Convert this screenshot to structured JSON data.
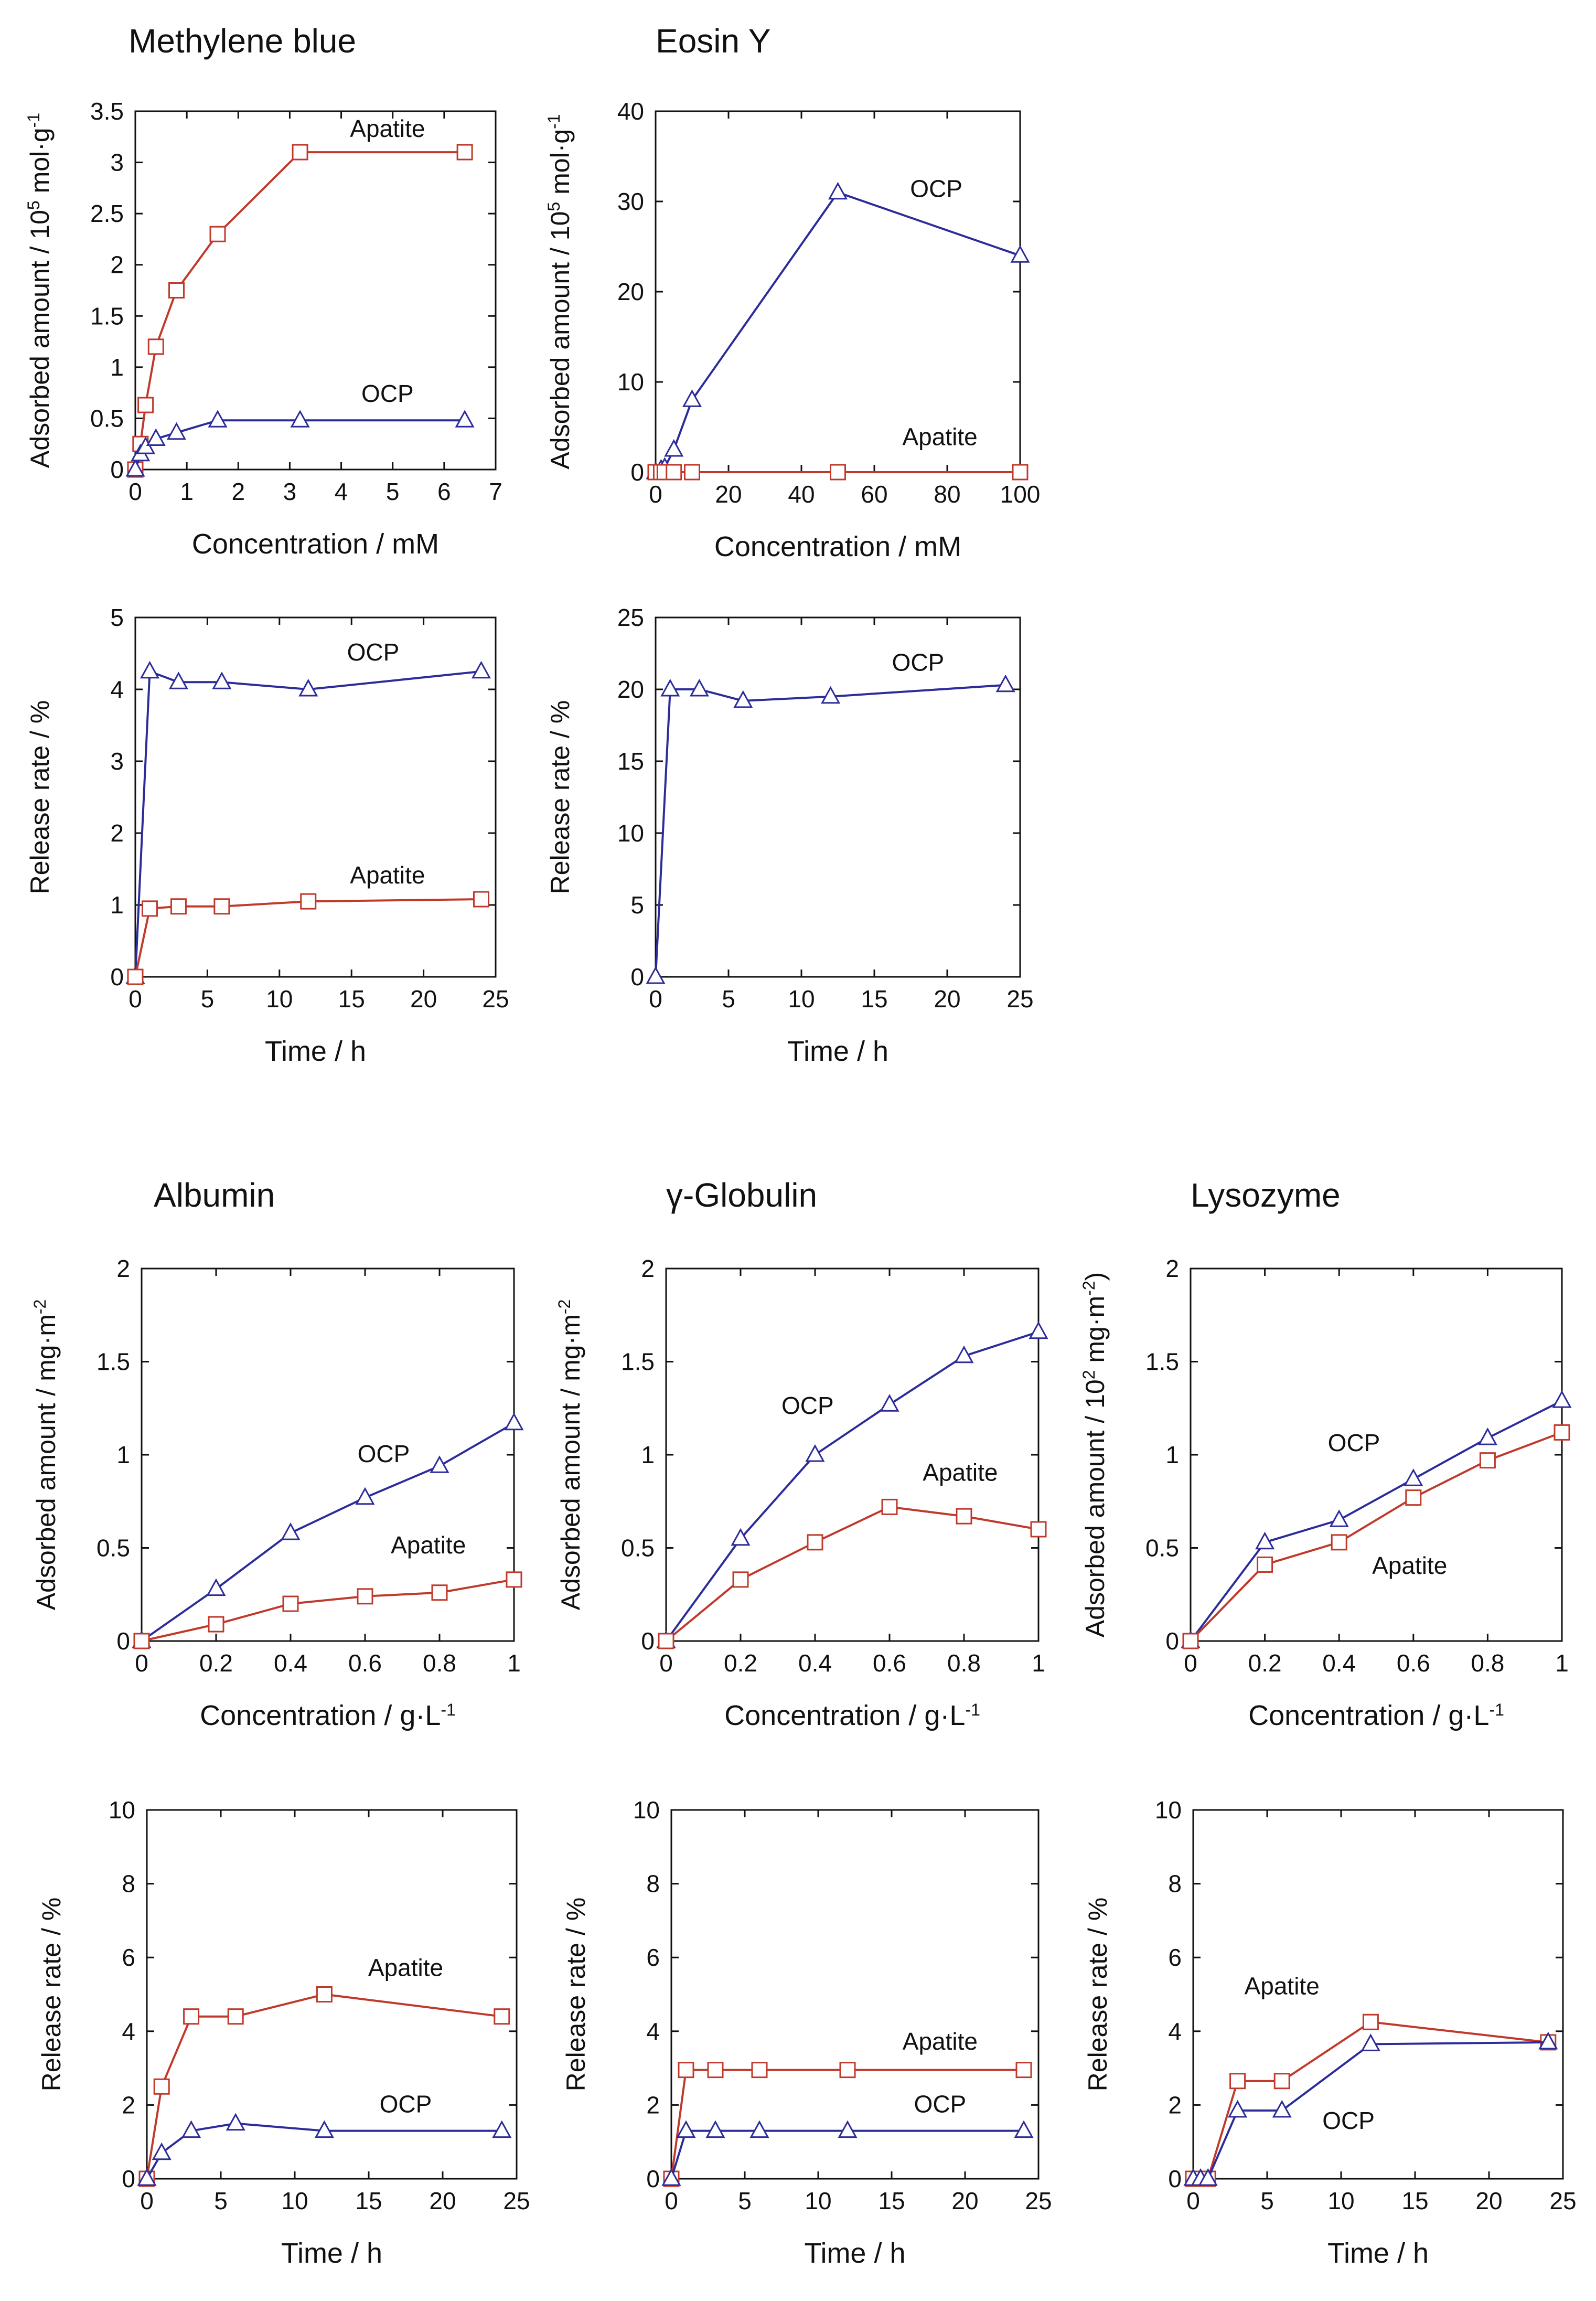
{
  "colors": {
    "apatite": "#c0392b",
    "ocp": "#2c2c9a",
    "axis": "#111111"
  },
  "chart_data": [
    {
      "id": "mb-ads",
      "type": "line",
      "title": "Methylene blue",
      "xlabel": "Concentration / mM",
      "ylabel": "Adsorbed amount / 10",
      "ylabel_sup": "5",
      "ylabel_tail": " mol·g",
      "ylabel_tail_sup": "-1",
      "xlim": [
        0,
        7
      ],
      "ylim": [
        0,
        3.5
      ],
      "xticks": [
        0,
        1,
        2,
        3,
        4,
        5,
        6,
        7
      ],
      "xtick_labels": [
        "0",
        "1",
        "2",
        "3",
        "4",
        "5",
        "6",
        "7"
      ],
      "yticks": [
        0,
        0.5,
        1,
        1.5,
        2,
        2.5,
        3,
        3.5
      ],
      "ytick_labels": [
        "0",
        "0.5",
        "1",
        "1.5",
        "2",
        "2.5",
        "3",
        "3.5"
      ],
      "series": [
        {
          "name": "Apatite",
          "marker": "square",
          "x": [
            0,
            0.1,
            0.2,
            0.4,
            0.8,
            1.6,
            3.2,
            6.4
          ],
          "y": [
            0,
            0.25,
            0.63,
            1.2,
            1.75,
            2.3,
            3.1,
            3.1
          ],
          "label": {
            "x": 4.9,
            "y": 3.25
          }
        },
        {
          "name": "OCP",
          "marker": "triangle",
          "x": [
            0,
            0.1,
            0.2,
            0.4,
            0.8,
            1.6,
            3.2,
            6.4
          ],
          "y": [
            0,
            0.15,
            0.22,
            0.3,
            0.36,
            0.48,
            0.48,
            0.48
          ],
          "label": {
            "x": 4.9,
            "y": 0.66
          }
        }
      ]
    },
    {
      "id": "eo-ads",
      "type": "line",
      "title": "Eosin Y",
      "xlabel": "Concentration / mM",
      "ylabel": "Adsorbed amount / 10",
      "ylabel_sup": "5",
      "ylabel_tail": " mol·g",
      "ylabel_tail_sup": "-1",
      "xlim": [
        0,
        100
      ],
      "ylim": [
        0,
        40
      ],
      "xticks": [
        0,
        20,
        40,
        60,
        80,
        100
      ],
      "xtick_labels": [
        "0",
        "20",
        "40",
        "60",
        "80",
        "100"
      ],
      "yticks": [
        0,
        10,
        20,
        30,
        40
      ],
      "ytick_labels": [
        "0",
        "10",
        "20",
        "30",
        "40"
      ],
      "series": [
        {
          "name": "OCP",
          "marker": "triangle",
          "x": [
            0,
            1.5,
            2.5,
            5,
            10,
            50,
            100
          ],
          "y": [
            0,
            0.3,
            0.5,
            2.5,
            8,
            31,
            24
          ],
          "label": {
            "x": 77,
            "y": 30.5
          }
        },
        {
          "name": "Apatite",
          "marker": "square",
          "x": [
            0,
            1.5,
            2.5,
            5,
            10,
            50,
            100
          ],
          "y": [
            0,
            0,
            0,
            0,
            0,
            0,
            0
          ],
          "label": {
            "x": 78,
            "y": 3
          }
        }
      ]
    },
    {
      "id": "mb-rel",
      "type": "line",
      "title": "",
      "xlabel": "Time / h",
      "ylabel": "Release rate / %",
      "xlim": [
        0,
        25
      ],
      "ylim": [
        0,
        5
      ],
      "xticks": [
        0,
        5,
        10,
        15,
        20,
        25
      ],
      "xtick_labels": [
        "0",
        "5",
        "10",
        "15",
        "20",
        "25"
      ],
      "yticks": [
        0,
        1,
        2,
        3,
        4,
        5
      ],
      "ytick_labels": [
        "0",
        "1",
        "2",
        "3",
        "4",
        "5"
      ],
      "series": [
        {
          "name": "OCP",
          "marker": "triangle",
          "x": [
            0,
            1,
            3,
            6,
            12,
            24
          ],
          "y": [
            0,
            4.25,
            4.1,
            4.1,
            4,
            4.25
          ],
          "label": {
            "x": 16.5,
            "y": 4.4
          }
        },
        {
          "name": "Apatite",
          "marker": "square",
          "x": [
            0,
            1,
            3,
            6,
            12,
            24
          ],
          "y": [
            0,
            0.95,
            0.98,
            0.98,
            1.05,
            1.08
          ],
          "label": {
            "x": 17.5,
            "y": 1.3
          }
        }
      ]
    },
    {
      "id": "eo-rel",
      "type": "line",
      "title": "",
      "xlabel": "Time / h",
      "ylabel": "Release rate / %",
      "xlim": [
        0,
        25
      ],
      "ylim": [
        0,
        25
      ],
      "xticks": [
        0,
        5,
        10,
        15,
        20,
        25
      ],
      "xtick_labels": [
        "0",
        "5",
        "10",
        "15",
        "20",
        "25"
      ],
      "yticks": [
        0,
        5,
        10,
        15,
        20,
        25
      ],
      "ytick_labels": [
        "0",
        "5",
        "10",
        "15",
        "20",
        "25"
      ],
      "series": [
        {
          "name": "OCP",
          "marker": "triangle",
          "x": [
            0,
            1,
            3,
            6,
            12,
            24
          ],
          "y": [
            0,
            20,
            20,
            19.2,
            19.5,
            20.3
          ],
          "label": {
            "x": 18,
            "y": 21.3
          }
        }
      ]
    },
    {
      "id": "alb-ads",
      "type": "line",
      "title": "Albumin",
      "xlabel": "Concentration / g·L",
      "xlabel_sup": "-1",
      "ylabel": "Adsorbed amount / mg·m",
      "ylabel_sup": "-2",
      "xlim": [
        0,
        1
      ],
      "ylim": [
        0,
        2
      ],
      "xticks": [
        0,
        0.2,
        0.4,
        0.6,
        0.8,
        1
      ],
      "xtick_labels": [
        "0",
        "0.2",
        "0.4",
        "0.6",
        "0.8",
        "1"
      ],
      "yticks": [
        0,
        0.5,
        1,
        1.5,
        2
      ],
      "ytick_labels": [
        "0",
        "0.5",
        "1",
        "1.5",
        "2"
      ],
      "series": [
        {
          "name": "OCP",
          "marker": "triangle",
          "x": [
            0,
            0.2,
            0.4,
            0.6,
            0.8,
            1
          ],
          "y": [
            0,
            0.28,
            0.58,
            0.77,
            0.94,
            1.17
          ],
          "label": {
            "x": 0.65,
            "y": 0.96
          }
        },
        {
          "name": "Apatite",
          "marker": "square",
          "x": [
            0,
            0.2,
            0.4,
            0.6,
            0.8,
            1
          ],
          "y": [
            0,
            0.09,
            0.2,
            0.24,
            0.26,
            0.33
          ],
          "label": {
            "x": 0.77,
            "y": 0.47
          }
        }
      ]
    },
    {
      "id": "glob-ads",
      "type": "line",
      "title": "γ-Globulin",
      "xlabel": "Concentration / g·L",
      "xlabel_sup": "-1",
      "ylabel": "Adsorbed amount / mg·m",
      "ylabel_sup": "-2",
      "xlim": [
        0,
        1
      ],
      "ylim": [
        0,
        2
      ],
      "xticks": [
        0,
        0.2,
        0.4,
        0.6,
        0.8,
        1
      ],
      "xtick_labels": [
        "0",
        "0.2",
        "0.4",
        "0.6",
        "0.8",
        "1"
      ],
      "yticks": [
        0,
        0.5,
        1,
        1.5,
        2
      ],
      "ytick_labels": [
        "0",
        "0.5",
        "1",
        "1.5",
        "2"
      ],
      "series": [
        {
          "name": "OCP",
          "marker": "triangle",
          "x": [
            0,
            0.2,
            0.4,
            0.6,
            0.8,
            1
          ],
          "y": [
            0,
            0.55,
            1,
            1.27,
            1.53,
            1.66
          ],
          "label": {
            "x": 0.38,
            "y": 1.22
          }
        },
        {
          "name": "Apatite",
          "marker": "square",
          "x": [
            0,
            0.2,
            0.4,
            0.6,
            0.8,
            1
          ],
          "y": [
            0,
            0.33,
            0.53,
            0.72,
            0.67,
            0.6
          ],
          "label": {
            "x": 0.79,
            "y": 0.86
          }
        }
      ]
    },
    {
      "id": "lys-ads",
      "type": "line",
      "title": "Lysozyme",
      "xlabel": "Concentration / g·L",
      "xlabel_sup": "-1",
      "ylabel": "Adsorbed amount / 10",
      "ylabel_sup": "2",
      "ylabel_tail": " mg·m",
      "ylabel_tail_sup": "-2",
      "ylabel_end": ")",
      "xlim": [
        0,
        1
      ],
      "ylim": [
        0,
        2
      ],
      "xticks": [
        0,
        0.2,
        0.4,
        0.6,
        0.8,
        1
      ],
      "xtick_labels": [
        "0",
        "0.2",
        "0.4",
        "0.6",
        "0.8",
        "1"
      ],
      "yticks": [
        0,
        0.5,
        1,
        1.5,
        2
      ],
      "ytick_labels": [
        "0",
        "0.5",
        "1",
        "1.5",
        "2"
      ],
      "series": [
        {
          "name": "OCP",
          "marker": "triangle",
          "x": [
            0,
            0.2,
            0.4,
            0.6,
            0.8,
            1
          ],
          "y": [
            0,
            0.53,
            0.65,
            0.87,
            1.09,
            1.29
          ],
          "label": {
            "x": 0.44,
            "y": 1.02
          }
        },
        {
          "name": "Apatite",
          "marker": "square",
          "x": [
            0,
            0.2,
            0.4,
            0.6,
            0.8,
            1
          ],
          "y": [
            0,
            0.41,
            0.53,
            0.77,
            0.97,
            1.12
          ],
          "label": {
            "x": 0.59,
            "y": 0.36
          }
        }
      ]
    },
    {
      "id": "alb-rel",
      "type": "line",
      "title": "",
      "xlabel": "Time / h",
      "ylabel": "Release rate / %",
      "xlim": [
        0,
        25
      ],
      "ylim": [
        0,
        10
      ],
      "xticks": [
        0,
        5,
        10,
        15,
        20,
        25
      ],
      "xtick_labels": [
        "0",
        "5",
        "10",
        "15",
        "20",
        "25"
      ],
      "yticks": [
        0,
        2,
        4,
        6,
        8,
        10
      ],
      "ytick_labels": [
        "0",
        "2",
        "4",
        "6",
        "8",
        "10"
      ],
      "series": [
        {
          "name": "Apatite",
          "marker": "square",
          "x": [
            0,
            1,
            3,
            6,
            12,
            24
          ],
          "y": [
            0,
            2.5,
            4.4,
            4.4,
            5,
            4.4
          ],
          "label": {
            "x": 17.5,
            "y": 5.5
          }
        },
        {
          "name": "OCP",
          "marker": "triangle",
          "x": [
            0,
            1,
            3,
            6,
            12,
            24
          ],
          "y": [
            0,
            0.7,
            1.3,
            1.5,
            1.3,
            1.3
          ],
          "label": {
            "x": 17.5,
            "y": 1.8
          }
        }
      ]
    },
    {
      "id": "glob-rel",
      "type": "line",
      "title": "",
      "xlabel": "Time / h",
      "ylabel": "Release rate / %",
      "xlim": [
        0,
        25
      ],
      "ylim": [
        0,
        10
      ],
      "xticks": [
        0,
        5,
        10,
        15,
        20,
        25
      ],
      "xtick_labels": [
        "0",
        "5",
        "10",
        "15",
        "20",
        "25"
      ],
      "yticks": [
        0,
        2,
        4,
        6,
        8,
        10
      ],
      "ytick_labels": [
        "0",
        "2",
        "4",
        "6",
        "8",
        "10"
      ],
      "series": [
        {
          "name": "Apatite",
          "marker": "square",
          "x": [
            0,
            1,
            3,
            6,
            12,
            24
          ],
          "y": [
            0,
            2.95,
            2.95,
            2.95,
            2.95,
            2.95
          ],
          "label": {
            "x": 18.3,
            "y": 3.5
          }
        },
        {
          "name": "OCP",
          "marker": "triangle",
          "x": [
            0,
            1,
            3,
            6,
            12,
            24
          ],
          "y": [
            0,
            1.3,
            1.3,
            1.3,
            1.3,
            1.3
          ],
          "label": {
            "x": 18.3,
            "y": 1.8
          }
        }
      ]
    },
    {
      "id": "lys-rel",
      "type": "line",
      "title": "",
      "xlabel": "Time / h",
      "ylabel": "Release rate / %",
      "xlim": [
        0,
        25
      ],
      "ylim": [
        0,
        10
      ],
      "xticks": [
        0,
        5,
        10,
        15,
        20,
        25
      ],
      "xtick_labels": [
        "0",
        "5",
        "10",
        "15",
        "20",
        "25"
      ],
      "yticks": [
        0,
        2,
        4,
        6,
        8,
        10
      ],
      "ytick_labels": [
        "0",
        "2",
        "4",
        "6",
        "8",
        "10"
      ],
      "series": [
        {
          "name": "Apatite",
          "marker": "square",
          "x": [
            0,
            0.5,
            1,
            3,
            6,
            12,
            24
          ],
          "y": [
            0,
            0,
            0,
            2.65,
            2.65,
            4.25,
            3.7
          ],
          "label": {
            "x": 6,
            "y": 5
          }
        },
        {
          "name": "OCP",
          "marker": "triangle",
          "x": [
            0,
            0.5,
            1,
            3,
            6,
            12,
            24
          ],
          "y": [
            0,
            0,
            0,
            1.85,
            1.85,
            3.65,
            3.7
          ],
          "label": {
            "x": 10.5,
            "y": 1.35
          }
        }
      ]
    }
  ]
}
